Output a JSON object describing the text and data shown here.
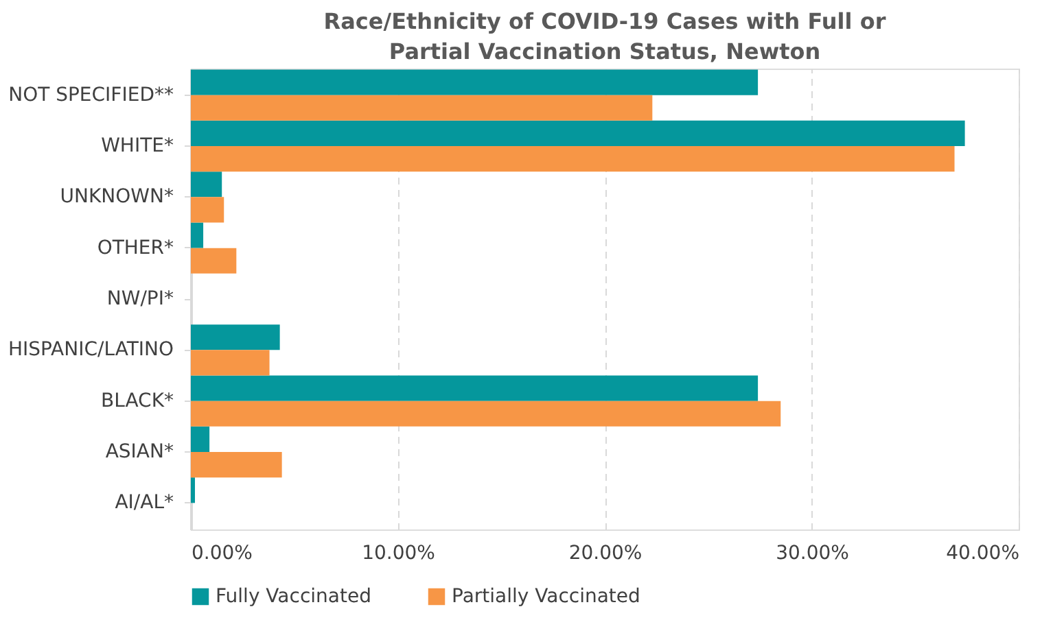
{
  "chart_data": {
    "type": "bar",
    "orientation": "horizontal",
    "title": "Race/Ethnicity of COVID-19 Cases with Full or Partial Vaccination Status, Newton",
    "categories": [
      "NOT SPECIFIED**",
      "WHITE*",
      "UNKNOWN*",
      "OTHER*",
      "NW/PI*",
      "HISPANIC/LATINO",
      "BLACK*",
      "ASIAN*",
      "AI/AL*"
    ],
    "series": [
      {
        "name": "Fully Vaccinated",
        "color": "#05979c",
        "values": [
          27.4,
          37.4,
          1.5,
          0.6,
          0,
          4.3,
          27.4,
          0.9,
          0.2
        ]
      },
      {
        "name": "Partially Vaccinated",
        "color": "#f79646",
        "values": [
          22.3,
          36.9,
          1.6,
          2.2,
          0,
          3.8,
          28.5,
          4.4,
          0
        ]
      }
    ],
    "xlim": [
      0,
      40
    ],
    "xticks": [
      {
        "value": 0,
        "label": "0.00%"
      },
      {
        "value": 10,
        "label": "10.00%"
      },
      {
        "value": 20,
        "label": "20.00%"
      },
      {
        "value": 30,
        "label": "30.00%"
      },
      {
        "value": 40,
        "label": "40.00%"
      }
    ],
    "grid": "x",
    "legend": "bottom"
  }
}
